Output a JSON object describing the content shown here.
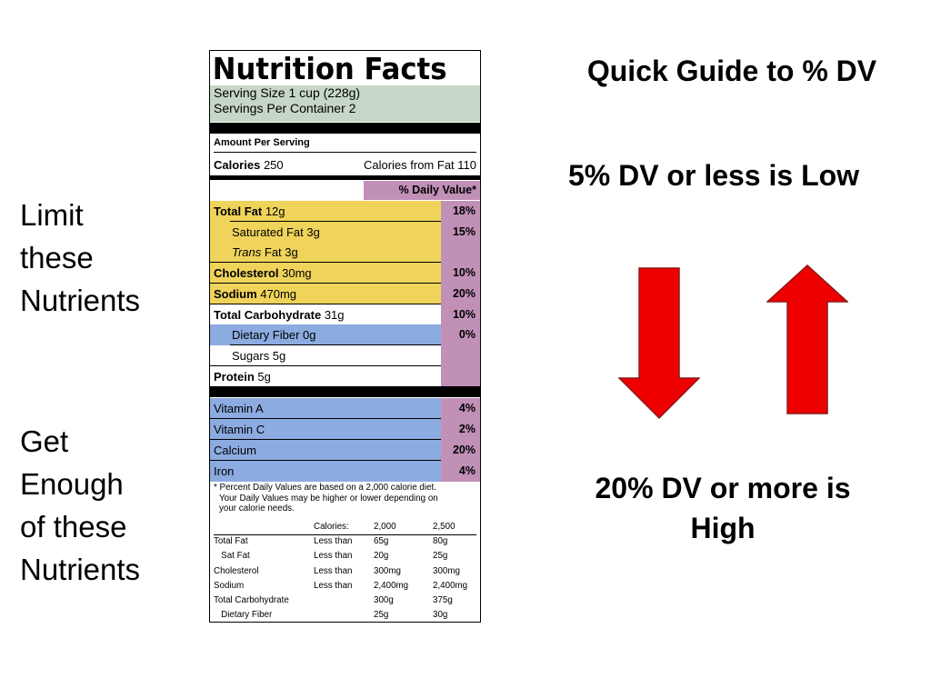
{
  "left_labels": {
    "limit": [
      "Limit",
      "these",
      "Nutrients"
    ],
    "enough": [
      "Get",
      "Enough",
      "of these",
      "Nutrients"
    ]
  },
  "guide": {
    "title": "Quick Guide to % DV",
    "low": "5% DV or less is Low",
    "high_line1": "20% DV or more is",
    "high_line2": "High",
    "arrow_color": "#ee0000"
  },
  "label": {
    "title": "Nutrition Facts",
    "serving_size": "Serving Size 1 cup (228g)",
    "servings_per_container": "Servings Per Container  2",
    "amount_per_serving": "Amount Per Serving",
    "calories_label": "Calories",
    "calories_value": "250",
    "calories_from_fat": "Calories from Fat 110",
    "dv_header": "% Daily Value*",
    "nutrients": [
      {
        "bold": "Total Fat",
        "rest": " 12g",
        "pct": "18%"
      },
      {
        "rest": "Saturated Fat 3g",
        "pct": "15%"
      },
      {
        "italic": "Trans",
        "rest": " Fat 3g",
        "pct": ""
      },
      {
        "bold": "Cholesterol",
        "rest": " 30mg",
        "pct": "10%"
      },
      {
        "bold": "Sodium",
        "rest": " 470mg",
        "pct": "20%"
      },
      {
        "bold": "Total Carbohydrate",
        "rest": " 31g",
        "pct": "10%"
      },
      {
        "rest": "Dietary Fiber 0g",
        "pct": "0%"
      },
      {
        "rest": "Sugars 5g",
        "pct": ""
      },
      {
        "bold": "Protein",
        "rest": " 5g",
        "pct": ""
      }
    ],
    "vitamins": [
      {
        "name": "Vitamin A",
        "pct": "4%"
      },
      {
        "name": "Vitamin C",
        "pct": "2%"
      },
      {
        "name": "Calcium",
        "pct": "20%"
      },
      {
        "name": "Iron",
        "pct": "4%"
      }
    ],
    "footnote": [
      "* Percent Daily Values are based on a 2,000 calorie diet.",
      "  Your Daily Values may be higher or lower depending on",
      "  your calorie needs."
    ],
    "table": {
      "header": [
        "",
        "Calories:",
        "2,000",
        "2,500"
      ],
      "rows": [
        [
          "Total Fat",
          "Less than",
          "65g",
          "80g"
        ],
        [
          "  Sat Fat",
          "Less than",
          "20g",
          "25g"
        ],
        [
          "Cholesterol",
          "Less than",
          "300mg",
          "300mg"
        ],
        [
          "Sodium",
          "Less than",
          "2,400mg",
          "2,400mg"
        ],
        [
          "Total Carbohydrate",
          "",
          "300g",
          "375g"
        ],
        [
          "  Dietary Fiber",
          "",
          "25g",
          "30g"
        ]
      ]
    },
    "colors": {
      "serving_bg": "#c7d7c7",
      "limit_bg": "#efd35b",
      "enough_bg": "#8cabe0",
      "dv_column": "#c190b7"
    }
  }
}
